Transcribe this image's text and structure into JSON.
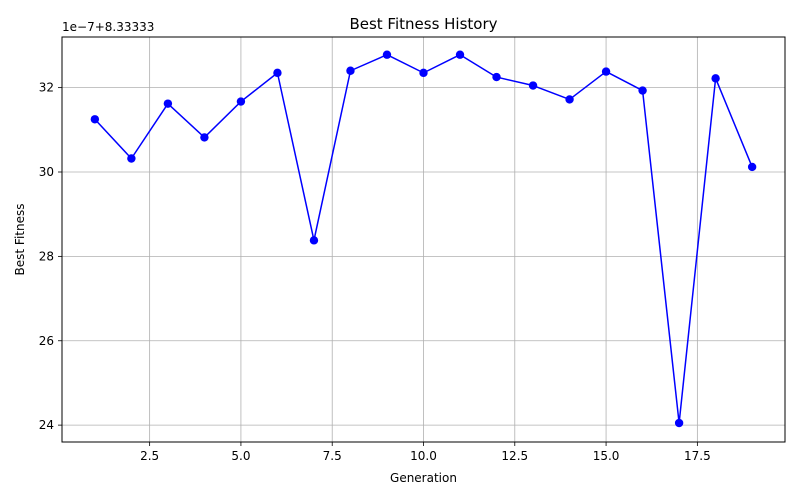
{
  "chart_data": {
    "type": "line",
    "title": "Best Fitness History",
    "xlabel": "Generation",
    "ylabel": "Best Fitness",
    "y_offset_text": "1e−7+8.33333",
    "x": [
      1,
      2,
      3,
      4,
      5,
      6,
      7,
      8,
      9,
      10,
      11,
      12,
      13,
      14,
      15,
      16,
      17,
      18,
      19
    ],
    "series": [
      {
        "values": [
          31.25,
          30.32,
          31.62,
          30.82,
          31.67,
          32.35,
          28.38,
          32.4,
          32.78,
          32.35,
          32.78,
          32.25,
          32.05,
          31.72,
          32.38,
          31.93,
          24.05,
          32.22,
          30.12
        ],
        "color": "#0000ff",
        "marker": "circle"
      }
    ],
    "xlim": [
      0.1,
      19.9
    ],
    "ylim": [
      23.6,
      33.2
    ],
    "x_ticks": [
      2.5,
      5.0,
      7.5,
      10.0,
      12.5,
      15.0,
      17.5
    ],
    "x_tick_labels": [
      "2.5",
      "5.0",
      "7.5",
      "10.0",
      "12.5",
      "15.0",
      "17.5"
    ],
    "y_ticks": [
      24,
      26,
      28,
      30,
      32
    ],
    "y_tick_labels": [
      "24",
      "26",
      "28",
      "30",
      "32"
    ],
    "grid": true,
    "legend": false
  }
}
